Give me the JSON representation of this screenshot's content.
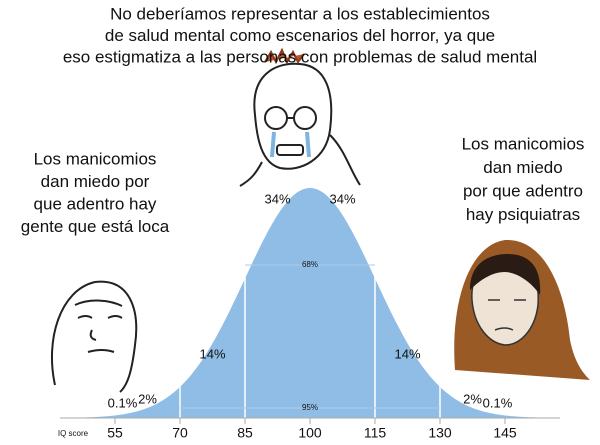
{
  "caption": [
    "No deberíamos representar a los establecimientos",
    "de salud mental como escenarios del horror, ya que",
    "eso estigmatiza a las personas con problemas de salud mental"
  ],
  "left_text": [
    "Los manicomios",
    "dan miedo por",
    "que adentro hay",
    "gente que está loca"
  ],
  "right_text": [
    "Los manicomios",
    "dan miedo",
    "por que adentro",
    "hay psiquiatras"
  ],
  "chart_data": {
    "type": "bell",
    "color": "#8fbde6",
    "x_label": "IQ score",
    "xlim": [
      40,
      160
    ],
    "xticks": [
      55,
      70,
      85,
      100,
      115,
      130,
      145
    ],
    "region_values": [
      0.1,
      2,
      14,
      34,
      34,
      14,
      2,
      0.1
    ],
    "region_value_labels": [
      "0.1%",
      "2%",
      "14%",
      "34%",
      "34%",
      "14%",
      "2%",
      "0.1%"
    ],
    "bracket_values": [
      68,
      95
    ],
    "bracket_value_labels": [
      "68%",
      "95%"
    ]
  }
}
